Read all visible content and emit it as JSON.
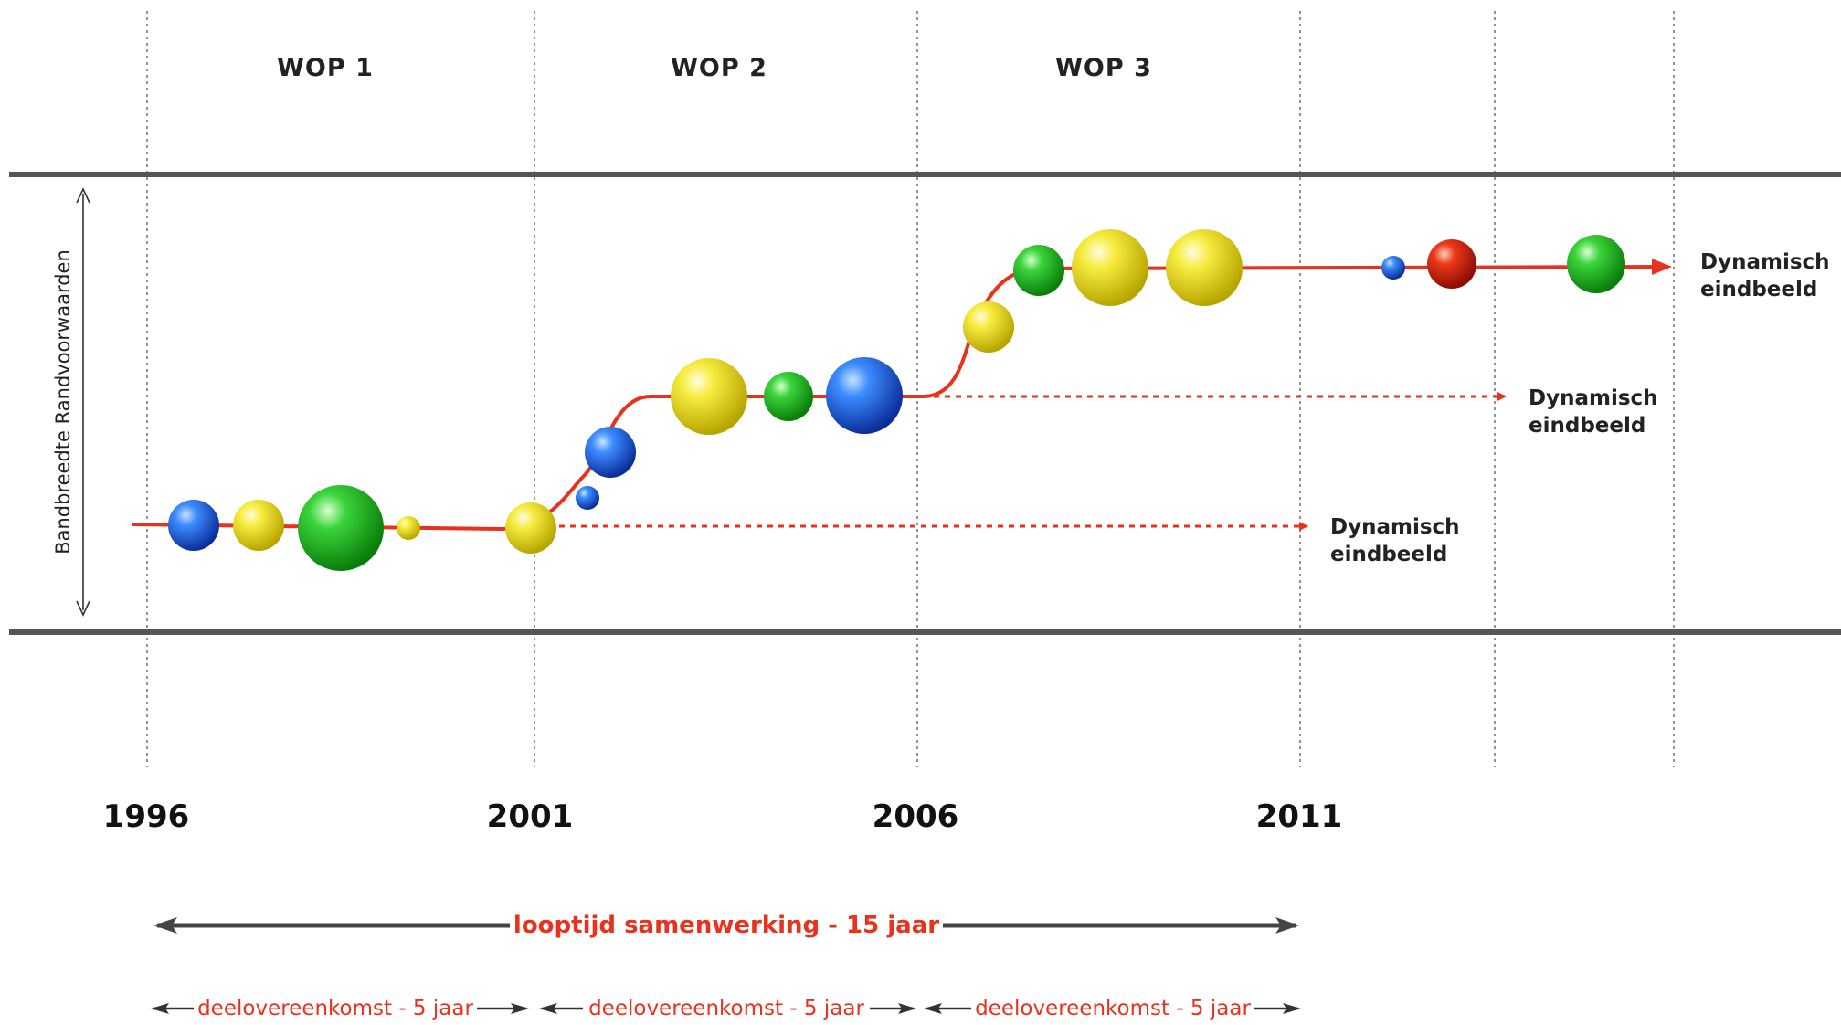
{
  "title": "",
  "phases": [
    "WOP 1",
    "WOP 2",
    "WOP 3"
  ],
  "years": [
    "1996",
    "2001",
    "2006",
    "2011"
  ],
  "y_axis_label": "Bandbreedte Randvoorwaarden",
  "end_labels": [
    {
      "line1": "Dynamisch",
      "line2": "eindbeeld"
    },
    {
      "line1": "Dynamisch",
      "line2": "eindbeeld"
    },
    {
      "line1": "Dynamisch",
      "line2": "eindbeeld"
    }
  ],
  "duration": {
    "label": "looptijd samenwerking - 15 jaar"
  },
  "sub_agreements": [
    {
      "label": "deelovereenkomst - 5 jaar"
    },
    {
      "label": "deelovereenkomst - 5 jaar"
    },
    {
      "label": "deelovereenkomst - 5 jaar"
    }
  ],
  "colors": {
    "path": "#e8321e",
    "band": "#555555",
    "blue": "#1f5fe0",
    "yellow": "#f2e12a",
    "green": "#22b822",
    "red": "#d81e12",
    "arrow_dark": "#444444"
  },
  "spheres": [
    {
      "level": 1,
      "color": "blue",
      "size": "medium"
    },
    {
      "level": 1,
      "color": "yellow",
      "size": "medium"
    },
    {
      "level": 1,
      "color": "green",
      "size": "large"
    },
    {
      "level": 1,
      "color": "yellow",
      "size": "tiny"
    },
    {
      "level": 1,
      "color": "yellow",
      "size": "medium"
    },
    {
      "level": 1.5,
      "color": "blue",
      "size": "tiny"
    },
    {
      "level": 1.5,
      "color": "blue",
      "size": "medium"
    },
    {
      "level": 2,
      "color": "yellow",
      "size": "large"
    },
    {
      "level": 2,
      "color": "green",
      "size": "medium"
    },
    {
      "level": 2,
      "color": "blue",
      "size": "large"
    },
    {
      "level": 2.5,
      "color": "yellow",
      "size": "medium"
    },
    {
      "level": 3,
      "color": "green",
      "size": "medium"
    },
    {
      "level": 3,
      "color": "yellow",
      "size": "large"
    },
    {
      "level": 3,
      "color": "yellow",
      "size": "large"
    },
    {
      "level": 3,
      "color": "blue",
      "size": "tiny"
    },
    {
      "level": 3,
      "color": "red",
      "size": "medium"
    },
    {
      "level": 3,
      "color": "green",
      "size": "medium"
    }
  ]
}
